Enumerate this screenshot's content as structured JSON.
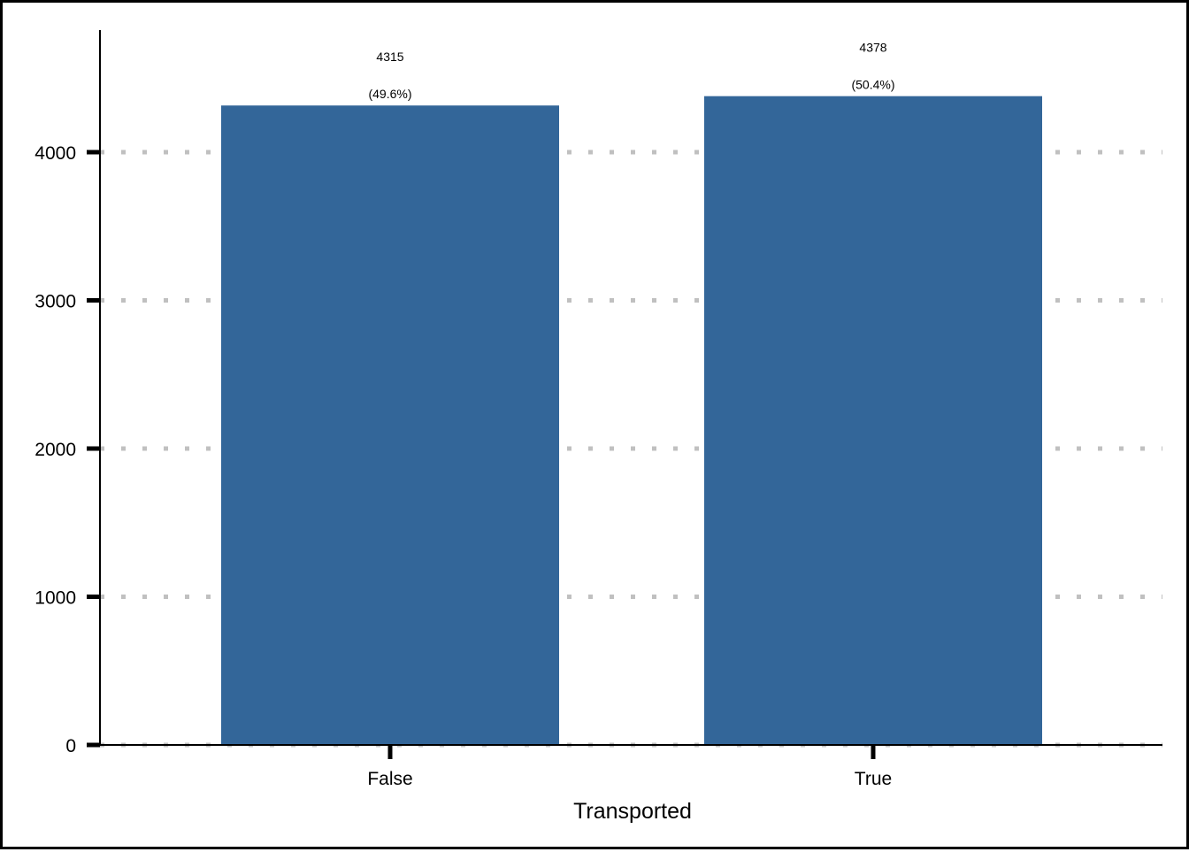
{
  "chart_data": {
    "type": "bar",
    "title": "",
    "xlabel": "Transported",
    "ylabel": "",
    "categories": [
      "False",
      "True"
    ],
    "values": [
      4315,
      4378
    ],
    "value_labels": [
      "4315",
      "4378"
    ],
    "percent_labels": [
      "(49.6%)",
      "(50.4%)"
    ],
    "ylim": [
      0,
      4800
    ],
    "yticks": [
      0,
      1000,
      2000,
      3000,
      4000
    ],
    "ytick_labels": [
      "0",
      "1000",
      "2000",
      "3000",
      "4000"
    ],
    "grid": "horizontal-dotted",
    "legend": "none",
    "colors": {
      "bar": "#336699",
      "grid": "#c0c0c0",
      "axis": "#000000"
    }
  }
}
